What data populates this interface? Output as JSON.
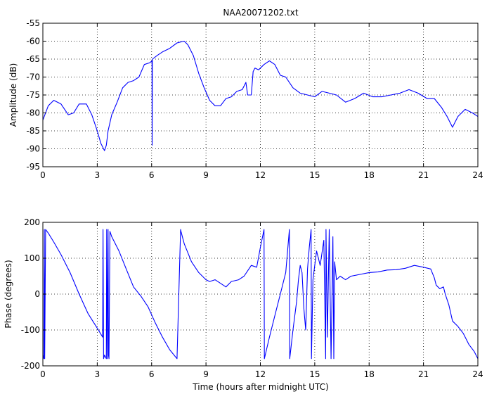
{
  "chart_data": [
    {
      "type": "line",
      "title": "NAA20071202.txt",
      "xlabel": "",
      "ylabel": "Amplitude (dB)",
      "xlim": [
        0,
        24
      ],
      "ylim": [
        -95,
        -55
      ],
      "xticks": [
        0,
        3,
        6,
        9,
        12,
        15,
        18,
        21,
        24
      ],
      "yticks": [
        -95,
        -90,
        -85,
        -80,
        -75,
        -70,
        -65,
        -60,
        -55
      ],
      "grid": true,
      "color": "#0000ff",
      "series": [
        {
          "x": [
            0,
            0.3,
            0.6,
            1.0,
            1.4,
            1.7,
            2.0,
            2.4,
            2.7,
            3.0,
            3.2,
            3.4,
            3.5,
            3.6,
            3.8,
            4.1,
            4.4,
            4.7,
            5.0,
            5.3,
            5.6,
            5.9,
            6.02,
            6.03,
            6.04,
            6.05,
            6.3,
            6.6,
            7.0,
            7.4,
            7.8,
            8.0,
            8.3,
            8.6,
            8.9,
            9.2,
            9.5,
            9.7,
            9.8,
            10.1,
            10.4,
            10.7,
            11.0,
            11.2,
            11.3,
            11.5,
            11.6,
            11.7,
            11.9,
            12.2,
            12.5,
            12.8,
            13.1,
            13.4,
            13.8,
            14.2,
            14.6,
            15.0,
            15.4,
            15.8,
            16.2,
            16.7,
            17.2,
            17.7,
            18.2,
            18.7,
            19.2,
            19.7,
            20.2,
            20.7,
            21.2,
            21.6,
            22.0,
            22.3,
            22.6,
            22.9,
            23.3,
            23.7,
            24.0
          ],
          "y": [
            -82,
            -78,
            -76.5,
            -77.5,
            -80.5,
            -80,
            -77.5,
            -77.5,
            -80.5,
            -85,
            -88.5,
            -90.5,
            -89,
            -85,
            -80.5,
            -77,
            -73,
            -71.5,
            -71,
            -70,
            -66.5,
            -66,
            -65.5,
            -89,
            -65.5,
            -65,
            -64,
            -63,
            -62,
            -60.5,
            -60,
            -61,
            -64,
            -69,
            -73,
            -76.5,
            -78,
            -78,
            -78,
            -76,
            -75.5,
            -74,
            -73.5,
            -71.5,
            -75,
            -75,
            -68.5,
            -67.5,
            -68,
            -66.5,
            -65.5,
            -66.5,
            -69.5,
            -70,
            -73,
            -74.5,
            -75,
            -75.5,
            -74,
            -74.5,
            -75,
            -77,
            -76,
            -74.5,
            -75.5,
            -75.5,
            -75,
            -74.5,
            -73.5,
            -74.5,
            -76,
            -76,
            -78.5,
            -81,
            -84,
            -81,
            -79,
            -80,
            -81
          ]
        }
      ]
    },
    {
      "type": "line",
      "title": "",
      "xlabel": "Time (hours after midnight UTC)",
      "ylabel": "Phase (degrees)",
      "xlim": [
        0,
        24
      ],
      "ylim": [
        -200,
        200
      ],
      "xticks": [
        0,
        3,
        6,
        9,
        12,
        15,
        18,
        21,
        24
      ],
      "yticks": [
        -200,
        -100,
        0,
        100,
        200
      ],
      "grid": true,
      "color": "#0000ff",
      "series": [
        {
          "x": [
            0,
            0.05,
            0.08,
            0.1,
            0.15,
            0.3,
            0.6,
            1.0,
            1.5,
            2.0,
            2.5,
            3.0,
            3.3,
            3.32,
            3.35,
            3.4,
            3.5,
            3.52,
            3.55,
            3.6,
            3.62,
            3.65,
            3.7,
            3.8,
            4.2,
            4.6,
            5.0,
            5.4,
            5.8,
            6.2,
            6.6,
            7.0,
            7.4,
            7.6,
            7.62,
            7.8,
            8.2,
            8.6,
            9.0,
            9.2,
            9.5,
            9.8,
            10.1,
            10.4,
            10.8,
            11.1,
            11.3,
            11.5,
            11.8,
            12.0,
            12.2,
            12.22,
            12.5,
            12.8,
            13.1,
            13.4,
            13.6,
            13.62,
            13.8,
            14.0,
            14.1,
            14.2,
            14.3,
            14.4,
            14.5,
            14.6,
            14.7,
            14.8,
            14.82,
            14.9,
            15.1,
            15.3,
            15.5,
            15.6,
            15.62,
            15.7,
            15.8,
            15.9,
            16.0,
            16.05,
            16.1,
            16.2,
            16.4,
            16.7,
            17.0,
            17.5,
            18.0,
            18.5,
            19.0,
            19.5,
            20.0,
            20.5,
            21.0,
            21.4,
            21.6,
            21.7,
            21.9,
            22.1,
            22.2,
            22.4,
            22.6,
            22.9,
            23.2,
            23.5,
            23.8,
            24.0
          ],
          "y": [
            -170,
            -180,
            180,
            -180,
            180,
            170,
            145,
            110,
            60,
            0,
            -55,
            -95,
            -120,
            180,
            -180,
            -170,
            -180,
            180,
            -180,
            180,
            -170,
            -180,
            175,
            160,
            120,
            70,
            20,
            -5,
            -35,
            -80,
            -120,
            -155,
            -180,
            180,
            175,
            140,
            90,
            60,
            40,
            35,
            40,
            30,
            20,
            35,
            40,
            50,
            65,
            80,
            75,
            130,
            180,
            -180,
            -120,
            -60,
            0,
            60,
            180,
            -180,
            -100,
            -20,
            40,
            80,
            60,
            -40,
            -100,
            70,
            130,
            180,
            -180,
            40,
            120,
            80,
            150,
            -180,
            180,
            -120,
            180,
            -180,
            160,
            -180,
            90,
            40,
            50,
            40,
            50,
            55,
            60,
            62,
            67,
            68,
            72,
            80,
            75,
            70,
            45,
            25,
            15,
            20,
            0,
            -30,
            -75,
            -90,
            -110,
            -140,
            -160,
            -180
          ]
        }
      ]
    }
  ]
}
